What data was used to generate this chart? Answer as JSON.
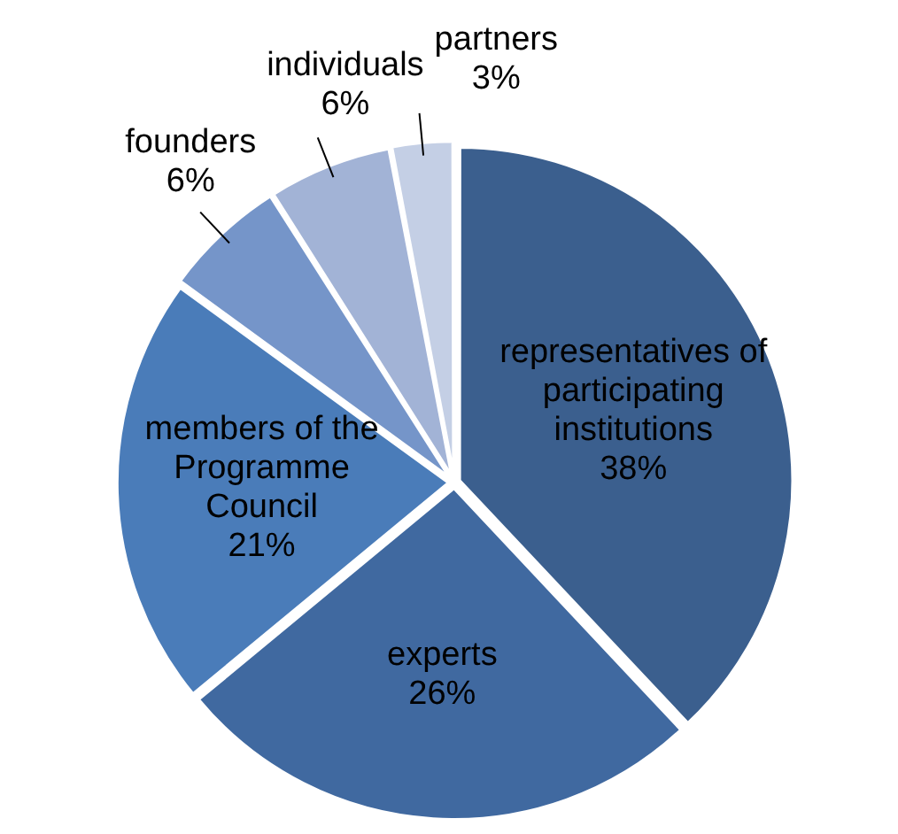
{
  "chart_data": {
    "type": "pie",
    "categories": [
      "representatives of participating institutions",
      "experts",
      "members of the Programme Council",
      "founders",
      "individuals",
      "partners"
    ],
    "values": [
      38,
      26,
      21,
      6,
      6,
      3
    ],
    "value_labels": [
      "38%",
      "26%",
      "21%",
      "6%",
      "6%",
      "3%"
    ],
    "colors": [
      "#3b5f8e",
      "#4069a0",
      "#4a7cb9",
      "#7595c9",
      "#a2b3d6",
      "#c4cfe5"
    ],
    "legend": false
  }
}
